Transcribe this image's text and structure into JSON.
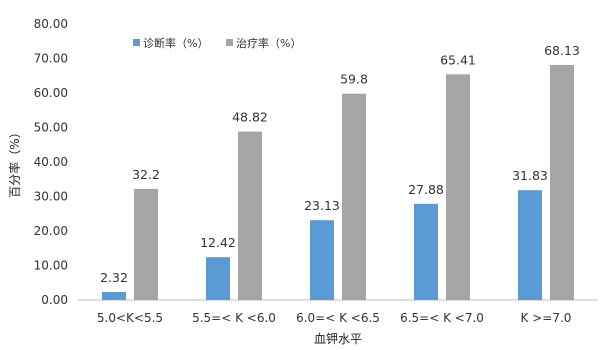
{
  "chart_data": {
    "type": "bar",
    "title": "",
    "xlabel": "血钾水平",
    "ylabel": "百分率（%）",
    "ylim": [
      0,
      80
    ],
    "yticks": [
      "0.00",
      "10.00",
      "20.00",
      "30.00",
      "40.00",
      "50.00",
      "60.00",
      "70.00",
      "80.00"
    ],
    "grid": false,
    "legend_position": "top-left",
    "categories": [
      "5.0<K<5.5",
      "5.5=< K <6.0",
      "6.0=< K <6.5",
      "6.5=< K <7.0",
      "K >=7.0"
    ],
    "series": [
      {
        "name": "诊断率（%）",
        "color": "#5B9BD5",
        "values": [
          2.32,
          12.42,
          23.13,
          27.88,
          31.83
        ],
        "labels": [
          "2.32",
          "12.42",
          "23.13",
          "27.88",
          "31.83"
        ]
      },
      {
        "name": "治疗率（%）",
        "color": "#A5A5A5",
        "values": [
          32.2,
          48.82,
          59.8,
          65.41,
          68.13
        ],
        "labels": [
          "32.2",
          "48.82",
          "59.8",
          "65.41",
          "68.13"
        ]
      }
    ]
  }
}
